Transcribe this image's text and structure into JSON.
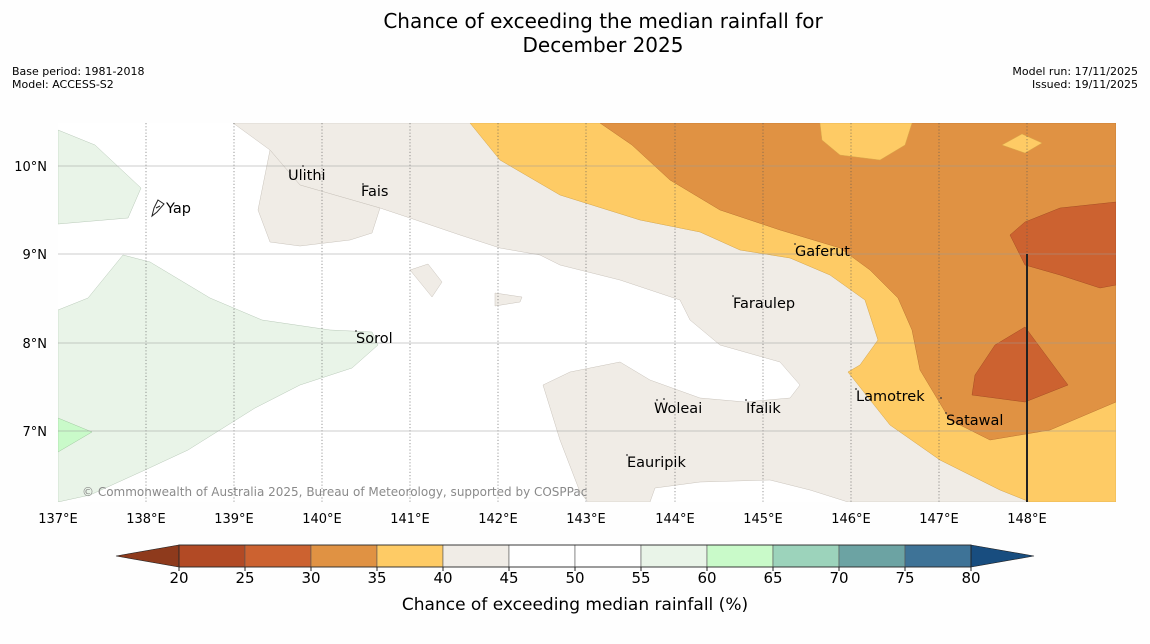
{
  "title": {
    "line1": "Chance of exceeding the median rainfall for",
    "line2": "December 2025"
  },
  "meta": {
    "base_period": "Base period: 1981-2018",
    "model": "Model: ACCESS-S2",
    "model_run": "Model run: 17/11/2025",
    "issued": "Issued: 19/11/2025"
  },
  "map": {
    "lon_labels": [
      "137°E",
      "138°E",
      "139°E",
      "140°E",
      "141°E",
      "142°E",
      "143°E",
      "144°E",
      "145°E",
      "146°E",
      "147°E",
      "148°E"
    ],
    "lat_labels": [
      "10°N",
      "9°N",
      "8°N",
      "7°N"
    ],
    "places": [
      {
        "name": "Yap"
      },
      {
        "name": "Ulithi"
      },
      {
        "name": "Fais"
      },
      {
        "name": "Gaferut"
      },
      {
        "name": "Faraulep"
      },
      {
        "name": "Sorol"
      },
      {
        "name": "Lamotrek"
      },
      {
        "name": "Satawal"
      },
      {
        "name": "Woleai"
      },
      {
        "name": "Ifalik"
      },
      {
        "name": "Eauripik"
      }
    ],
    "copyright": "© Commonwealth of Australia 2025, Bureau of Meteorology, supported by COSPPac"
  },
  "colorbar": {
    "title": "Chance of exceeding median rainfall (%)",
    "ticks": [
      "20",
      "25",
      "30",
      "35",
      "40",
      "45",
      "50",
      "55",
      "60",
      "65",
      "70",
      "75",
      "80"
    ],
    "colors": {
      "below_20": "#8e3a1c",
      "20_25": "#b24a25",
      "25_30": "#cc6230",
      "30_35": "#e09243",
      "35_40": "#fecb65",
      "40_45": "#f0ece6",
      "45_50": "#ffffff",
      "50_55": "#ffffff",
      "55_60": "#e9f4e8",
      "60_65": "#c9fac9",
      "65_70": "#9cd3bb",
      "70_75": "#6ca3a3",
      "75_80": "#3e7397",
      "above_80": "#184d7f"
    }
  }
}
